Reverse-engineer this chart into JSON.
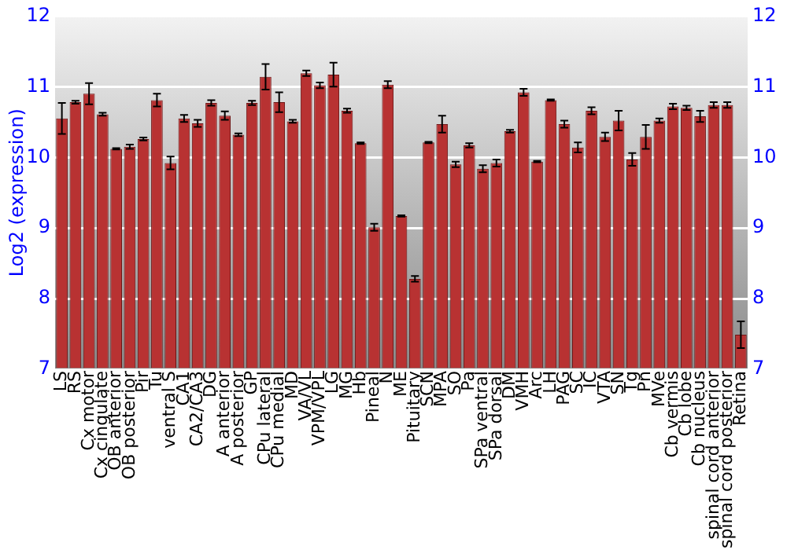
{
  "chart_data": {
    "type": "bar",
    "ylabel": "Log2 (expression)",
    "categories": [
      "LS",
      "RS",
      "Cx motor",
      "Cx cingulate",
      "OB anterior",
      "OB posterior",
      "Pir",
      "Tu",
      "ventral S",
      "CA1",
      "CA2/CA3",
      "DG",
      "A anterior",
      "A posterior",
      "GP",
      "CPu lateral",
      "CPu medial",
      "MD",
      "VA/VL",
      "VPM/VPL",
      "LG",
      "MG",
      "Hb",
      "Pineal",
      "N",
      "ME",
      "Pituitary",
      "SCN",
      "MPA",
      "SO",
      "Pa",
      "SPa ventral",
      "SPa dorsal",
      "DM",
      "VMH",
      "Arc",
      "LH",
      "PAG",
      "SC",
      "IC",
      "VTA",
      "SN",
      "Tg",
      "Pn",
      "MVe",
      "Cb vermis",
      "Cb lobe",
      "Cb nucleus",
      "spinal cord anterior",
      "spinal cord posterior",
      "Retina"
    ],
    "values": [
      10.55,
      10.78,
      10.9,
      10.61,
      10.12,
      10.15,
      10.26,
      10.81,
      9.92,
      10.55,
      10.48,
      10.77,
      10.59,
      10.32,
      10.77,
      11.14,
      10.78,
      10.51,
      11.19,
      11.02,
      11.17,
      10.66,
      10.2,
      9.01,
      11.03,
      9.17,
      8.28,
      10.21,
      10.47,
      9.9,
      10.17,
      9.84,
      9.92,
      10.37,
      10.92,
      9.94,
      10.81,
      10.47,
      10.14,
      10.66,
      10.29,
      10.52,
      9.97,
      10.29,
      10.52,
      10.72,
      10.7,
      10.58,
      10.74,
      10.74,
      7.49
    ],
    "errors": [
      0.22,
      0.02,
      0.15,
      0.02,
      0.01,
      0.03,
      0.02,
      0.09,
      0.09,
      0.05,
      0.05,
      0.04,
      0.06,
      0.02,
      0.03,
      0.18,
      0.14,
      0.02,
      0.04,
      0.04,
      0.17,
      0.03,
      0.01,
      0.05,
      0.05,
      0.01,
      0.04,
      0.01,
      0.12,
      0.04,
      0.03,
      0.05,
      0.05,
      0.02,
      0.05,
      0.01,
      0.01,
      0.05,
      0.07,
      0.05,
      0.06,
      0.14,
      0.09,
      0.17,
      0.03,
      0.04,
      0.03,
      0.08,
      0.04,
      0.04,
      0.19
    ],
    "color": "#b83232",
    "ylim": [
      7,
      12
    ],
    "yticks": [
      7,
      8,
      9,
      10,
      11,
      12
    ],
    "y2lim": [
      7,
      12
    ],
    "y2ticks": [
      7,
      8,
      9,
      10,
      11,
      12
    ],
    "grid": "y",
    "legend": false
  }
}
